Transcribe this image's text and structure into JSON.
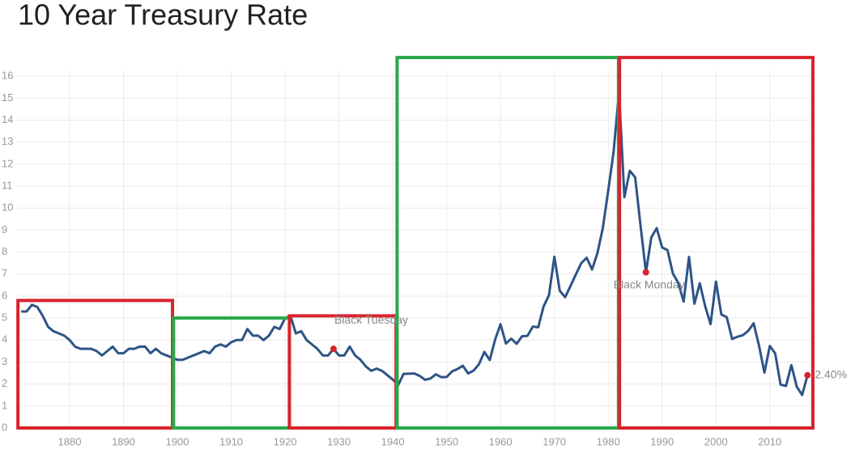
{
  "chart_data": {
    "type": "line",
    "title": "10 Year Treasury Rate",
    "x": [
      1871,
      1872,
      1873,
      1874,
      1875,
      1876,
      1877,
      1878,
      1879,
      1880,
      1881,
      1882,
      1883,
      1884,
      1885,
      1886,
      1887,
      1888,
      1889,
      1890,
      1891,
      1892,
      1893,
      1894,
      1895,
      1896,
      1897,
      1898,
      1899,
      1900,
      1901,
      1902,
      1903,
      1904,
      1905,
      1906,
      1907,
      1908,
      1909,
      1910,
      1911,
      1912,
      1913,
      1914,
      1915,
      1916,
      1917,
      1918,
      1919,
      1920,
      1921,
      1922,
      1923,
      1924,
      1925,
      1926,
      1927,
      1928,
      1929,
      1930,
      1931,
      1932,
      1933,
      1934,
      1935,
      1936,
      1937,
      1938,
      1939,
      1940,
      1941,
      1942,
      1943,
      1944,
      1945,
      1946,
      1947,
      1948,
      1949,
      1950,
      1951,
      1952,
      1953,
      1954,
      1955,
      1956,
      1957,
      1958,
      1959,
      1960,
      1961,
      1962,
      1963,
      1964,
      1965,
      1966,
      1967,
      1968,
      1969,
      1970,
      1971,
      1972,
      1973,
      1974,
      1975,
      1976,
      1977,
      1978,
      1979,
      1980,
      1981,
      1982,
      1983,
      1984,
      1985,
      1986,
      1987,
      1988,
      1989,
      1990,
      1991,
      1992,
      1993,
      1994,
      1995,
      1996,
      1997,
      1998,
      1999,
      2000,
      2001,
      2002,
      2003,
      2004,
      2005,
      2006,
      2007,
      2008,
      2009,
      2010,
      2011,
      2012,
      2013,
      2014,
      2015,
      2016,
      2017
    ],
    "series": [
      {
        "color": "#2e5486",
        "values": [
          5.3,
          5.3,
          5.6,
          5.5,
          5.1,
          4.6,
          4.4,
          4.3,
          4.2,
          4.0,
          3.7,
          3.6,
          3.6,
          3.6,
          3.5,
          3.3,
          3.5,
          3.7,
          3.4,
          3.4,
          3.6,
          3.6,
          3.7,
          3.7,
          3.4,
          3.6,
          3.4,
          3.3,
          3.2,
          3.1,
          3.1,
          3.2,
          3.3,
          3.4,
          3.5,
          3.4,
          3.7,
          3.8,
          3.7,
          3.9,
          4.0,
          4.0,
          4.5,
          4.2,
          4.2,
          4.0,
          4.2,
          4.6,
          4.5,
          5.0,
          5.1,
          4.3,
          4.4,
          4.0,
          3.8,
          3.6,
          3.3,
          3.3,
          3.6,
          3.3,
          3.3,
          3.7,
          3.3,
          3.1,
          2.8,
          2.6,
          2.7,
          2.6,
          2.4,
          2.2,
          1.95,
          2.46,
          2.47,
          2.48,
          2.37,
          2.19,
          2.25,
          2.44,
          2.31,
          2.32,
          2.57,
          2.68,
          2.83,
          2.48,
          2.61,
          2.9,
          3.46,
          3.09,
          4.02,
          4.72,
          3.84,
          4.06,
          3.83,
          4.17,
          4.19,
          4.61,
          4.58,
          5.53,
          6.04,
          7.79,
          6.24,
          5.95,
          6.46,
          6.99,
          7.5,
          7.74,
          7.21,
          7.96,
          9.1,
          10.8,
          12.57,
          15.3,
          10.5,
          11.7,
          11.4,
          9.2,
          7.08,
          8.67,
          9.09,
          8.21,
          8.09,
          7.03,
          6.6,
          5.75,
          7.78,
          5.65,
          6.58,
          5.54,
          4.72,
          6.66,
          5.16,
          5.04,
          4.05,
          4.15,
          4.22,
          4.42,
          4.76,
          3.74,
          2.52,
          3.73,
          3.39,
          1.97,
          1.91,
          2.86,
          1.88,
          1.5,
          2.4
        ]
      }
    ],
    "annotations": [
      {
        "x": 1929,
        "y": 3.6,
        "label": "Black Tuesday",
        "color": "#d9232e"
      },
      {
        "x": 1987,
        "y": 7.08,
        "label": "Black Monday",
        "color": "#d9232e"
      },
      {
        "x": 2017,
        "y": 2.4,
        "label": "2.40%",
        "color": "#d9232e"
      }
    ],
    "regions": [
      {
        "x": [
          1870.4,
          1899.1
        ],
        "top": 5.8,
        "color": "#d9232e"
      },
      {
        "x": [
          1899.3,
          1920.8
        ],
        "top": 5.0,
        "color": "#27a84a"
      },
      {
        "x": [
          1920.8,
          1940.6
        ],
        "top": 5.1,
        "color": "#d9232e"
      },
      {
        "x": [
          1940.8,
          1981.9
        ],
        "top": 16.85,
        "color": "#27a84a"
      },
      {
        "x": [
          1982.1,
          2018
        ],
        "top": 16.85,
        "color": "#d9232e"
      }
    ],
    "xlim": [
      1870,
      2018
    ],
    "ylim": [
      0,
      17
    ],
    "xticks": [
      1880,
      1890,
      1900,
      1910,
      1920,
      1930,
      1940,
      1950,
      1960,
      1970,
      1980,
      1990,
      2000,
      2010
    ],
    "yticks": [
      0,
      1,
      2,
      3,
      4,
      5,
      6,
      7,
      8,
      9,
      10,
      11,
      12,
      13,
      14,
      15,
      16
    ],
    "grid": true
  }
}
